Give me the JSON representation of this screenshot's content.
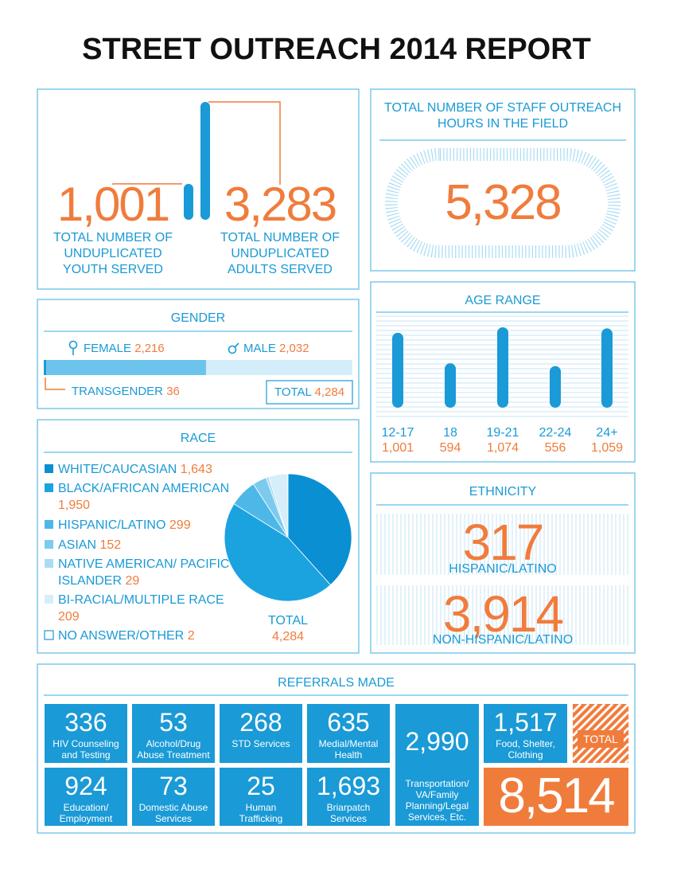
{
  "title": "STREET OUTREACH 2014 REPORT",
  "chart_data": [
    {
      "type": "bar",
      "categories": [
        "TOTAL NUMBER OF UNDUPLICATED YOUTH SERVED",
        "TOTAL NUMBER OF UNDUPLICATED ADULTS SERVED"
      ],
      "values": [
        1001,
        3283
      ],
      "value_labels": [
        "1,001",
        "3,283"
      ],
      "color": "#1a9ad6"
    },
    {
      "type": "stacked-bar",
      "title": "GENDER",
      "series": [
        {
          "name": "FEMALE",
          "color": "#6cc3ec",
          "values": [
            2216
          ],
          "value_labels": [
            "2,216"
          ]
        },
        {
          "name": "MALE",
          "color": "#d4edfa",
          "values": [
            2032
          ],
          "value_labels": [
            "2,032"
          ]
        },
        {
          "name": "TRANSGENDER",
          "color": "#1a9ad6",
          "values": [
            36
          ]
        }
      ],
      "total": {
        "label": "TOTAL",
        "value": 4284,
        "value_label": "4,284"
      }
    },
    {
      "type": "bar",
      "title": "AGE RANGE",
      "categories": [
        "12-17",
        "18",
        "19-21",
        "22-24",
        "24+"
      ],
      "values": [
        1001,
        594,
        1074,
        556,
        1059
      ],
      "value_labels": [
        "1,001",
        "594",
        "1,074",
        "556",
        "1,059"
      ],
      "color": "#1a9ad6"
    },
    {
      "type": "pie",
      "title": "RACE",
      "categories": [
        "WHITE/CAUCASIAN",
        "BLACK/AFRICAN AMERICAN",
        "HISPANIC/LATINO",
        "ASIAN",
        "NATIVE AMERICAN/ PACIFIC ISLANDER",
        "BI-RACIAL/MULTIPLE RACE",
        "NO ANSWER/OTHER"
      ],
      "values": [
        1643,
        1950,
        299,
        152,
        29,
        209,
        2
      ],
      "value_labels": [
        "1,643",
        "1,950",
        "299",
        "152",
        "29",
        "209",
        "2"
      ],
      "colors": [
        "#0a8fd2",
        "#1ba3e0",
        "#4db8e8",
        "#7ccbef",
        "#a9dcf4",
        "#d6eefa",
        "#ffffff"
      ],
      "total": {
        "label": "TOTAL",
        "value": 4284,
        "value_label": "4,284"
      }
    }
  ],
  "staff_hours": {
    "title": "TOTAL NUMBER OF STAFF OUTREACH HOURS IN THE FIELD",
    "value": "5,328"
  },
  "ethnicity": {
    "title": "ETHNICITY",
    "items": [
      {
        "value": "317",
        "label": "HISPANIC/LATINO"
      },
      {
        "value": "3,914",
        "label": "NON-HISPANIC/LATINO"
      }
    ]
  },
  "referrals": {
    "title": "REFERRALS MADE",
    "items": [
      {
        "value": "336",
        "label": "HIV Counseling and Testing"
      },
      {
        "value": "53",
        "label": "Alcohol/Drug Abuse Treatment"
      },
      {
        "value": "268",
        "label": "STD Services"
      },
      {
        "value": "635",
        "label": "Medial/Mental Health"
      },
      {
        "value": "2,990",
        "label": "Transportation/ VA/Family Planning/Legal Services, Etc."
      },
      {
        "value": "1,517",
        "label": "Food, Shelter, Clothing"
      },
      {
        "value": "924",
        "label": "Education/ Employment"
      },
      {
        "value": "73",
        "label": "Domestic Abuse Services"
      },
      {
        "value": "25",
        "label": "Human Trafficking"
      },
      {
        "value": "1,693",
        "label": "Briarpatch Services"
      }
    ],
    "total": {
      "label": "TOTAL",
      "value": "8,514"
    }
  }
}
